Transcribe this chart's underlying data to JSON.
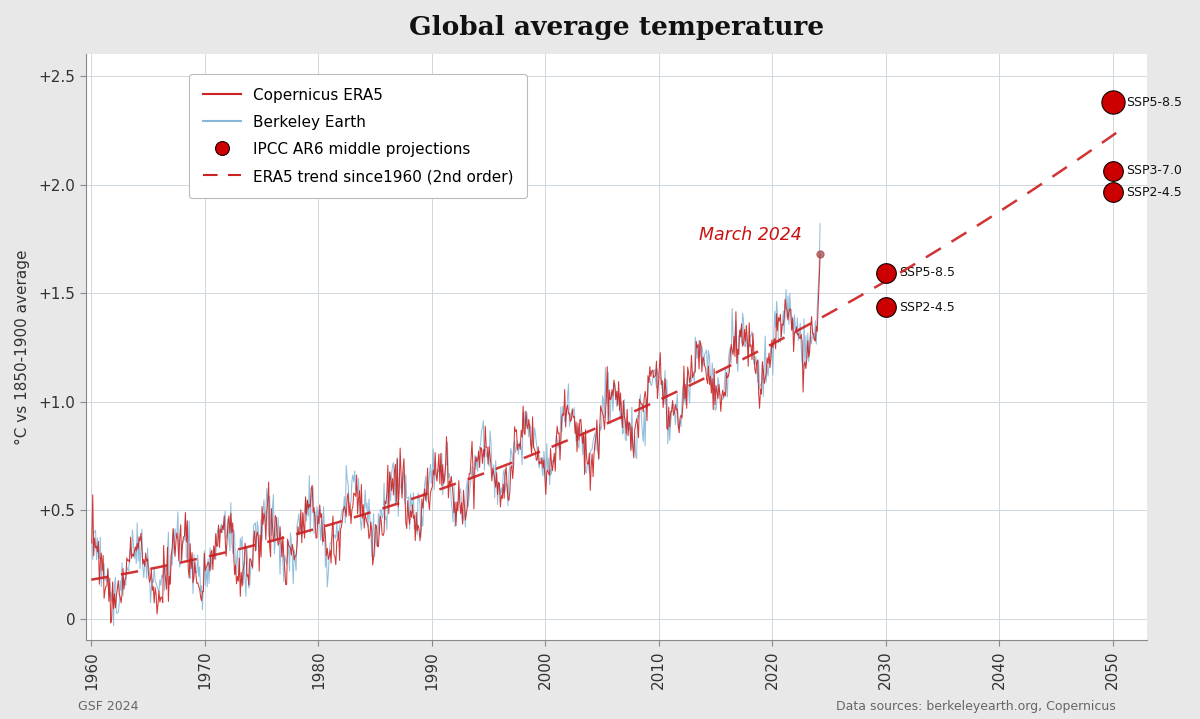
{
  "title": "Global average temperature",
  "ylabel": "°C vs 1850-1900 average",
  "xlim": [
    1959.5,
    2053
  ],
  "ylim": [
    -0.1,
    2.6
  ],
  "yticks": [
    0,
    0.5,
    1.0,
    1.5,
    2.0,
    2.5
  ],
  "ytick_labels": [
    "0",
    "+0.5",
    "+1.0",
    "+1.5",
    "+2.0",
    "+2.5"
  ],
  "xticks": [
    1960,
    1970,
    1980,
    1990,
    2000,
    2010,
    2020,
    2030,
    2040,
    2050
  ],
  "background_color": "#e8e8e8",
  "plot_bg_color": "#ffffff",
  "era5_color": "#cc2222",
  "berkeley_color": "#88b8d8",
  "trend_color": "#cc2222",
  "ipcc_color": "#cc0000",
  "march2024_label_color": "#cc1111",
  "annotation_march2024": "March 2024",
  "ipcc_2030_ssp585_y": 1.595,
  "ipcc_2030_ssp245_y": 1.435,
  "ipcc_2050_ssp585_y": 2.38,
  "ipcc_2050_ssp370_y": 2.065,
  "ipcc_2050_ssp245_y": 1.965,
  "march2024_dot_y": 1.68,
  "footer_left": "GSF 2024",
  "footer_right": "Data sources: berkeleyearth.org, Copernicus"
}
